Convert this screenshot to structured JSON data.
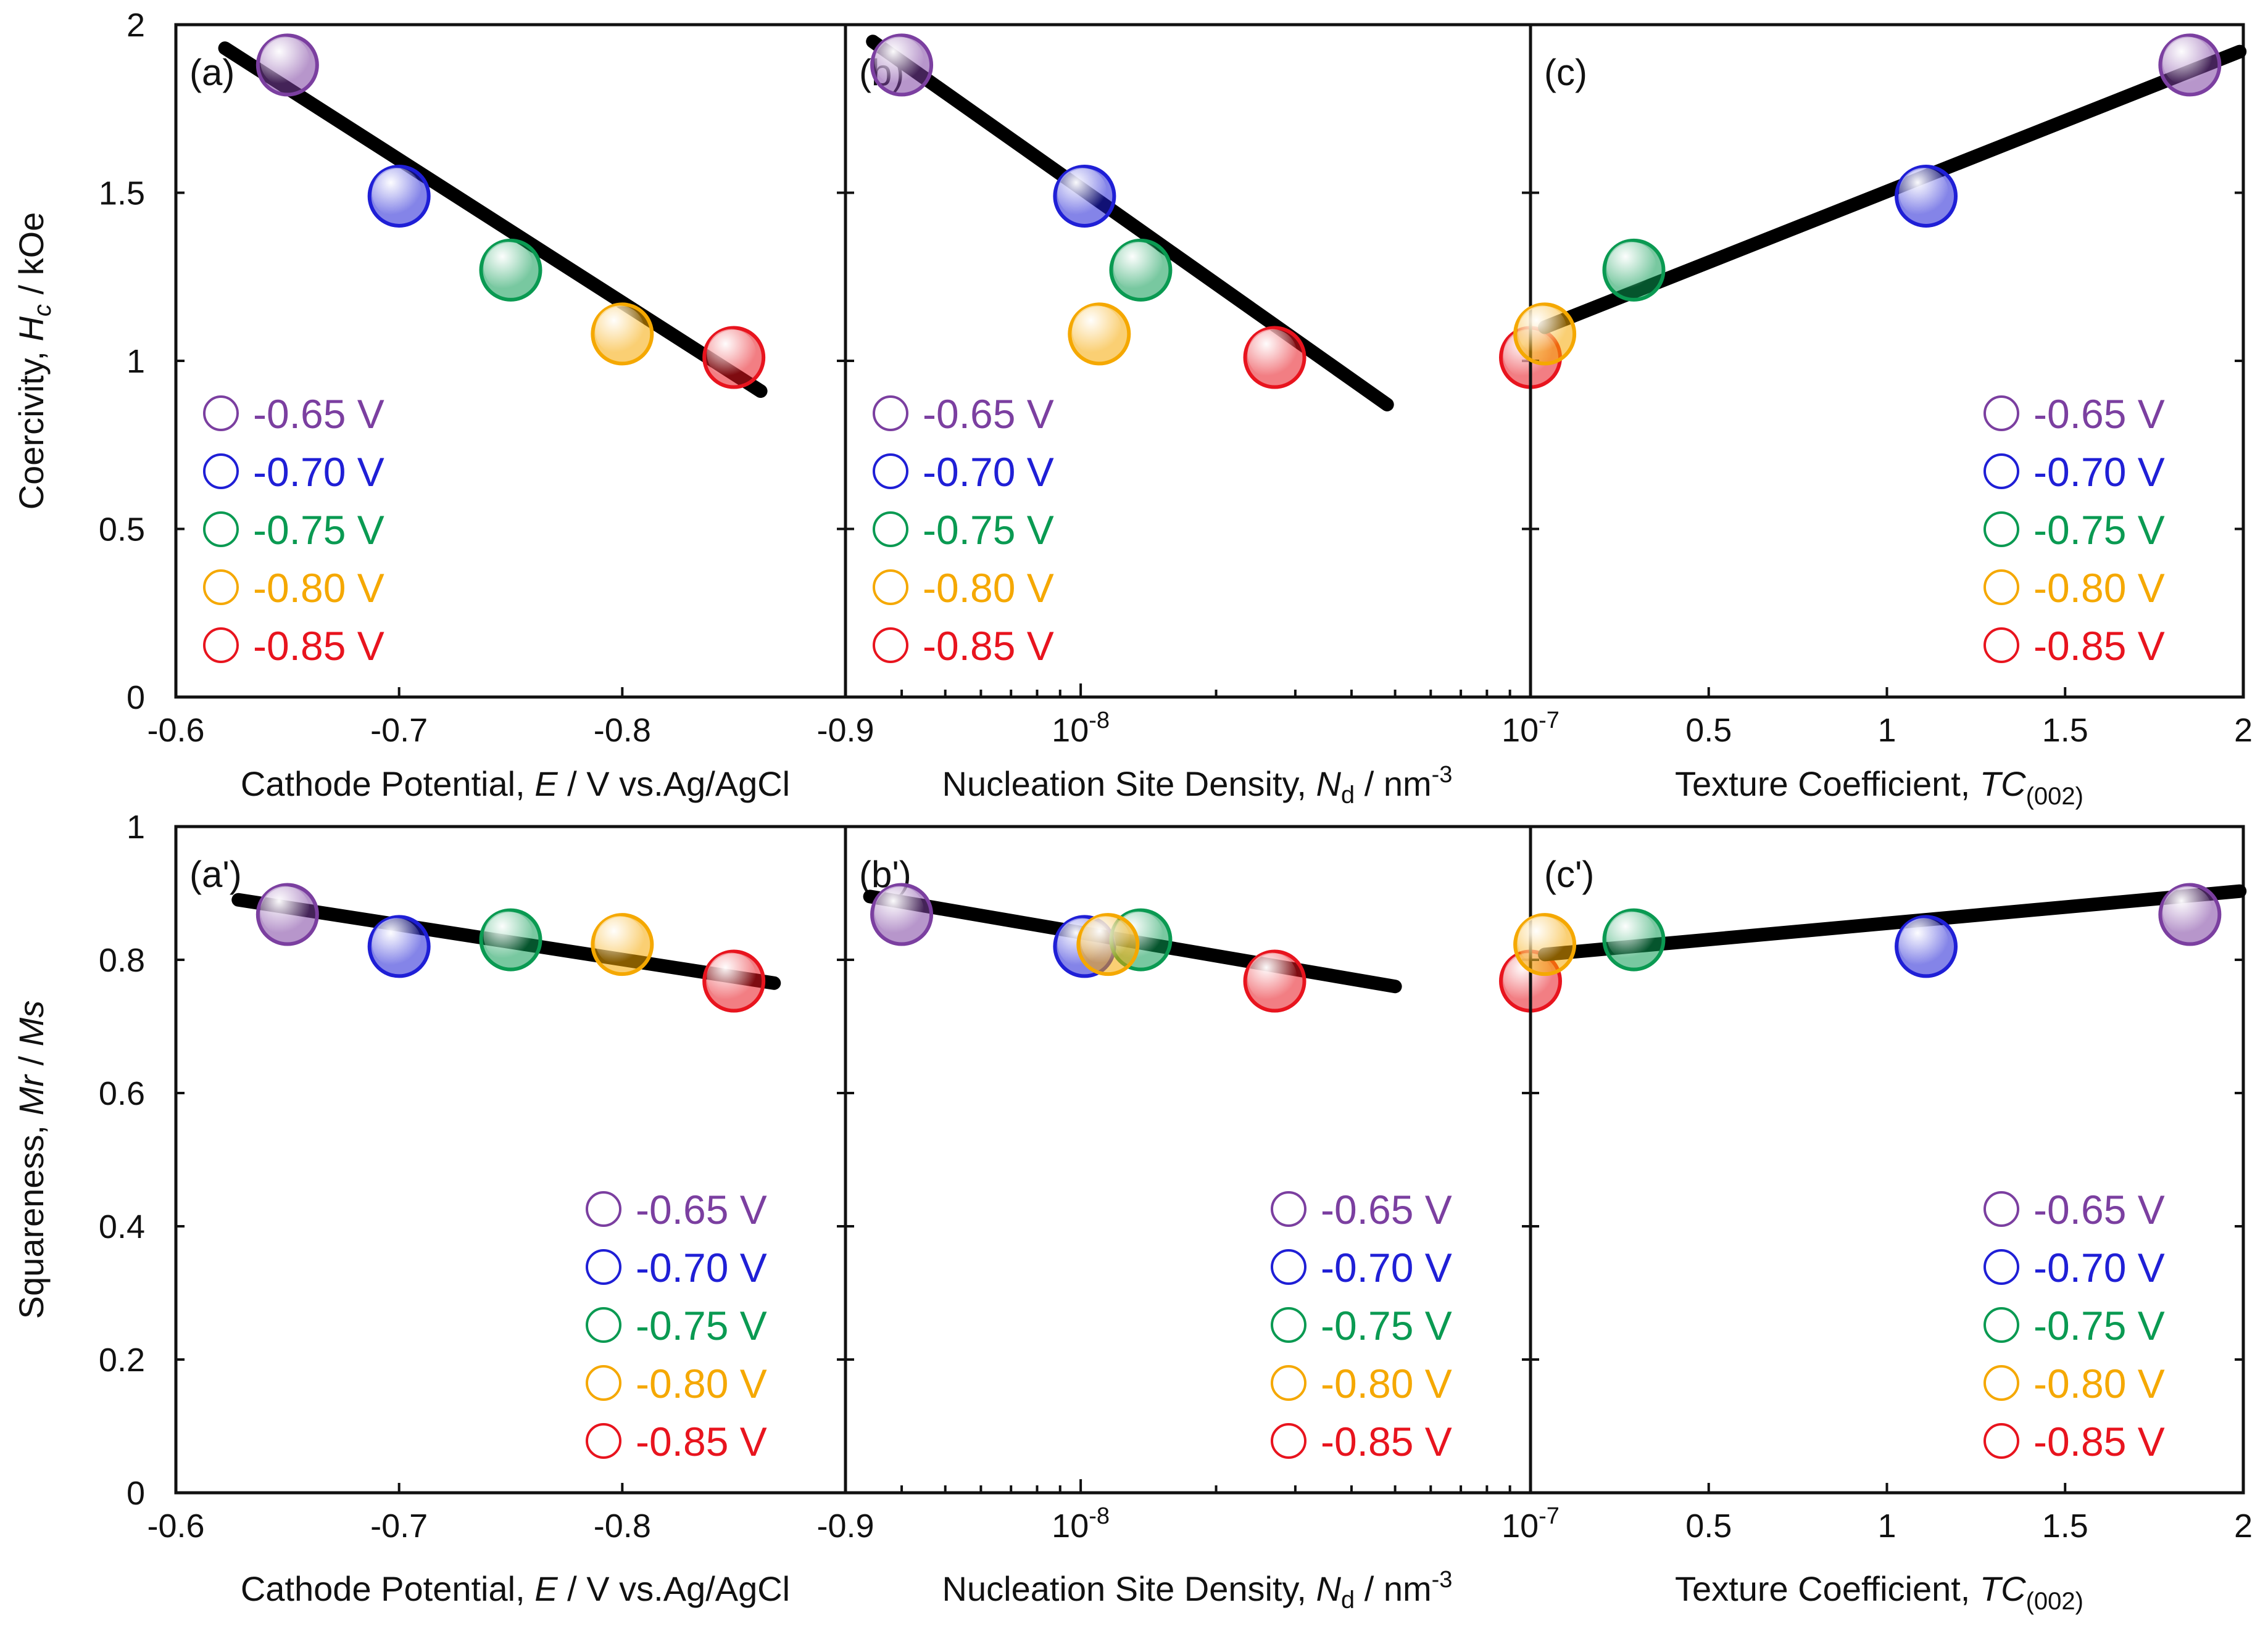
{
  "figure": {
    "colors": {
      "-0.65 V": "#7b3fa0",
      "-0.70 V": "#1f1fd6",
      "-0.75 V": "#0a9a52",
      "-0.80 V": "#f5a800",
      "-0.85 V": "#e8141e"
    },
    "legend_labels": [
      "-0.65 V",
      "-0.70 V",
      "-0.75 V",
      "-0.80 V",
      "-0.85 V"
    ]
  },
  "rows": [
    {
      "ylabel": "Coercivity, Hc / kOe",
      "ylabel_parts": [
        "Coercivity, ",
        "H",
        "c",
        " / kOe"
      ],
      "yticks": [
        "0",
        "0.5",
        "1",
        "1.5",
        "2"
      ]
    },
    {
      "ylabel": "Squareness, Mr / Ms",
      "ylabel_parts": [
        "Squareness, ",
        "Mr",
        " / ",
        "Ms"
      ],
      "yticks": [
        "0",
        "0.2",
        "0.4",
        "0.6",
        "0.8",
        "1"
      ]
    }
  ],
  "columns": [
    {
      "xlabel": "Cathode Potential, E / V vs.Ag/AgCl",
      "xlabel_parts": [
        "Cathode Potential, ",
        "E",
        " / V vs.Ag/AgCl"
      ],
      "xticks": [
        "-0.6",
        "-0.7",
        "-0.8",
        "-0.9"
      ]
    },
    {
      "xlabel": "Nucleation Site Density, Nd / nm-3",
      "xlabel_parts": [
        "Nucleation Site Density, ",
        "N",
        "d",
        " / nm",
        "-3"
      ],
      "xticks": [
        {
          "base": "10",
          "exp": "-8"
        },
        {
          "base": "10",
          "exp": "-7"
        }
      ]
    },
    {
      "xlabel": "Texture Coefficient, TC(002)",
      "xlabel_parts": [
        "Texture Coefficient, ",
        "TC",
        "(002)"
      ],
      "xticks": [
        "0.5",
        "1",
        "1.5",
        "2"
      ]
    }
  ],
  "chart_data": [
    {
      "type": "scatter",
      "label": "(a)",
      "xscale": "linear",
      "xlim": [
        -0.6,
        -0.9
      ],
      "ylim": [
        0,
        2
      ],
      "xlabel": "Cathode Potential, E / V vs.Ag/AgCl",
      "ylabel": "Coercivity, Hc / kOe",
      "points": [
        {
          "label": "-0.65 V",
          "x": -0.65,
          "y": 1.88
        },
        {
          "label": "-0.70 V",
          "x": -0.7,
          "y": 1.49
        },
        {
          "label": "-0.75 V",
          "x": -0.75,
          "y": 1.27
        },
        {
          "label": "-0.80 V",
          "x": -0.8,
          "y": 1.08
        },
        {
          "label": "-0.85 V",
          "x": -0.85,
          "y": 1.01
        }
      ],
      "fit_line": {
        "x": [
          -0.622,
          -0.862
        ],
        "y": [
          1.93,
          0.91
        ]
      },
      "legend_position": "bottom-left"
    },
    {
      "type": "scatter",
      "label": "(b)",
      "xscale": "log",
      "xlim": [
        3e-09,
        1e-07
      ],
      "ylim": [
        0,
        2
      ],
      "xlabel": "Nucleation Site Density, Nd / nm-3",
      "ylabel": "Coercivity, Hc / kOe",
      "points": [
        {
          "label": "-0.65 V",
          "x": 4e-09,
          "y": 1.88
        },
        {
          "label": "-0.70 V",
          "x": 1.02e-08,
          "y": 1.49
        },
        {
          "label": "-0.75 V",
          "x": 1.36e-08,
          "y": 1.27
        },
        {
          "label": "-0.80 V",
          "x": 1.1e-08,
          "y": 1.08
        },
        {
          "label": "-0.85 V",
          "x": 2.7e-08,
          "y": 1.01
        },
        {
          "label": "-0.85 V",
          "x": 1e-07,
          "y": 1.01
        }
      ],
      "fit_line": {
        "x": [
          3.45e-09,
          4.8e-08
        ],
        "y": [
          1.95,
          0.87
        ]
      },
      "legend_position": "bottom-left"
    },
    {
      "type": "scatter",
      "label": "(c)",
      "xscale": "linear",
      "xlim": [
        0,
        2
      ],
      "ylim": [
        0,
        2
      ],
      "xlabel": "Texture Coefficient, TC(002)",
      "ylabel": "Coercivity, Hc / kOe",
      "points": [
        {
          "label": "-0.65 V",
          "x": 1.85,
          "y": 1.88
        },
        {
          "label": "-0.70 V",
          "x": 1.11,
          "y": 1.49
        },
        {
          "label": "-0.75 V",
          "x": 0.29,
          "y": 1.27
        },
        {
          "label": "-0.80 V",
          "x": 0.04,
          "y": 1.08
        }
      ],
      "fit_line": {
        "x": [
          0.04,
          1.99
        ],
        "y": [
          1.1,
          1.92
        ]
      },
      "legend_position": "bottom-right"
    },
    {
      "type": "scatter",
      "label": "(a')",
      "xscale": "linear",
      "xlim": [
        -0.6,
        -0.9
      ],
      "ylim": [
        0,
        1
      ],
      "xlabel": "Cathode Potential, E / V vs.Ag/AgCl",
      "ylabel": "Squareness, Mr / Ms",
      "points": [
        {
          "label": "-0.65 V",
          "x": -0.65,
          "y": 0.868
        },
        {
          "label": "-0.70 V",
          "x": -0.7,
          "y": 0.82
        },
        {
          "label": "-0.75 V",
          "x": -0.75,
          "y": 0.83
        },
        {
          "label": "-0.80 V",
          "x": -0.8,
          "y": 0.823
        },
        {
          "label": "-0.85 V",
          "x": -0.85,
          "y": 0.768
        }
      ],
      "fit_line": {
        "x": [
          -0.628,
          -0.868
        ],
        "y": [
          0.89,
          0.765
        ]
      },
      "legend_position": "bottom-right"
    },
    {
      "type": "scatter",
      "label": "(b')",
      "xscale": "log",
      "xlim": [
        3e-09,
        1e-07
      ],
      "ylim": [
        0,
        1
      ],
      "xlabel": "Nucleation Site Density, Nd / nm-3",
      "ylabel": "Squareness, Mr / Ms",
      "points": [
        {
          "label": "-0.65 V",
          "x": 4e-09,
          "y": 0.868
        },
        {
          "label": "-0.70 V",
          "x": 1.02e-08,
          "y": 0.82
        },
        {
          "label": "-0.75 V",
          "x": 1.36e-08,
          "y": 0.83
        },
        {
          "label": "-0.80 V",
          "x": 1.15e-08,
          "y": 0.823
        },
        {
          "label": "-0.85 V",
          "x": 2.7e-08,
          "y": 0.768
        },
        {
          "label": "-0.85 V",
          "x": 1e-07,
          "y": 0.768
        }
      ],
      "fit_line": {
        "x": [
          3.4e-09,
          5e-08
        ],
        "y": [
          0.895,
          0.76
        ]
      },
      "legend_position": "bottom-right"
    },
    {
      "type": "scatter",
      "label": "(c')",
      "xscale": "linear",
      "xlim": [
        0,
        2
      ],
      "ylim": [
        0,
        1
      ],
      "xlabel": "Texture Coefficient, TC(002)",
      "ylabel": "Squareness, Mr / Ms",
      "points": [
        {
          "label": "-0.65 V",
          "x": 1.85,
          "y": 0.868
        },
        {
          "label": "-0.70 V",
          "x": 1.11,
          "y": 0.82
        },
        {
          "label": "-0.75 V",
          "x": 0.29,
          "y": 0.83
        },
        {
          "label": "-0.80 V",
          "x": 0.04,
          "y": 0.823
        }
      ],
      "fit_line": {
        "x": [
          0.04,
          1.99
        ],
        "y": [
          0.808,
          0.903
        ]
      },
      "legend_position": "bottom-right"
    }
  ]
}
